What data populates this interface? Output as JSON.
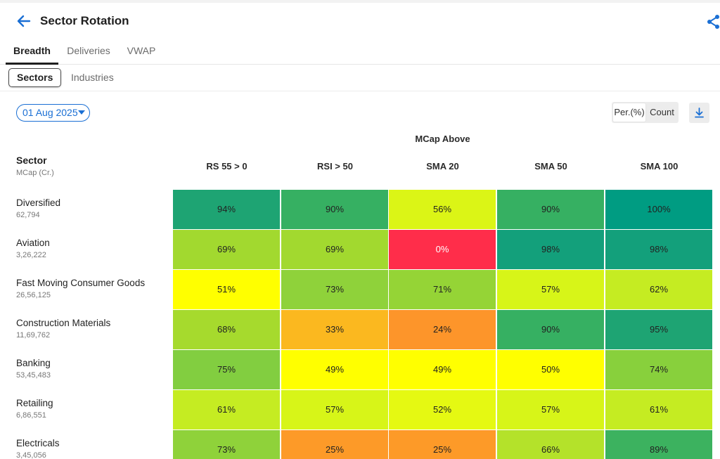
{
  "header": {
    "title": "Sector Rotation"
  },
  "tabs": [
    {
      "label": "Breadth",
      "active": true
    },
    {
      "label": "Deliveries",
      "active": false
    },
    {
      "label": "VWAP",
      "active": false
    }
  ],
  "subtabs": [
    {
      "label": "Sectors",
      "active": true
    },
    {
      "label": "Industries",
      "active": false
    }
  ],
  "date_filter": {
    "value": "01 Aug 2025"
  },
  "view_toggle": {
    "percent_label": "Per.(%)",
    "count_label": "Count",
    "selected": "percent"
  },
  "table": {
    "group_header": "MCap Above",
    "sector_header": "Sector",
    "sector_subheader": "MCap (Cr.)",
    "columns": [
      "RS 55 > 0",
      "RSI > 50",
      "SMA 20",
      "SMA 50",
      "SMA 100"
    ],
    "rows": [
      {
        "name": "Diversified",
        "mcap": "62,794",
        "values": [
          "94%",
          "90%",
          "56%",
          "90%",
          "100%"
        ]
      },
      {
        "name": "Aviation",
        "mcap": "3,26,222",
        "values": [
          "69%",
          "69%",
          "0%",
          "98%",
          "98%"
        ]
      },
      {
        "name": "Fast Moving Consumer Goods",
        "mcap": "26,56,125",
        "values": [
          "51%",
          "73%",
          "71%",
          "57%",
          "62%"
        ]
      },
      {
        "name": "Construction Materials",
        "mcap": "11,69,762",
        "values": [
          "68%",
          "33%",
          "24%",
          "90%",
          "95%"
        ]
      },
      {
        "name": "Banking",
        "mcap": "53,45,483",
        "values": [
          "75%",
          "49%",
          "49%",
          "50%",
          "74%"
        ]
      },
      {
        "name": "Retailing",
        "mcap": "6,86,551",
        "values": [
          "61%",
          "57%",
          "52%",
          "57%",
          "61%"
        ]
      },
      {
        "name": "Electricals",
        "mcap": "3,45,056",
        "values": [
          "73%",
          "25%",
          "25%",
          "66%",
          "89%"
        ]
      }
    ]
  },
  "colors": {
    "accent": "#1a6fd4",
    "cells": [
      [
        "#1ea473",
        "#36b062",
        "#dbf516",
        "#36b062",
        "#009c82"
      ],
      [
        "#a2d92f",
        "#a2d92f",
        "#ff2d4a",
        "#13a07b",
        "#13a07b"
      ],
      [
        "#ffff00",
        "#8fd23a",
        "#95d436",
        "#d7f518",
        "#c5ec22"
      ],
      [
        "#a6da2d",
        "#fbb81f",
        "#fd952a",
        "#36b062",
        "#1ea473"
      ],
      [
        "#82ce40",
        "#ffff00",
        "#ffff00",
        "#ffff00",
        "#88d03c"
      ],
      [
        "#c5ec22",
        "#d7f518",
        "#e5f912",
        "#d7f518",
        "#c5ec22"
      ],
      [
        "#8fd23a",
        "#fd9a28",
        "#fd9a28",
        "#b4e22a",
        "#3cb25f"
      ]
    ]
  },
  "icons": {
    "back": "arrow-left-icon",
    "share": "share-icon",
    "dropdown": "caret-down-icon",
    "download": "download-icon"
  }
}
